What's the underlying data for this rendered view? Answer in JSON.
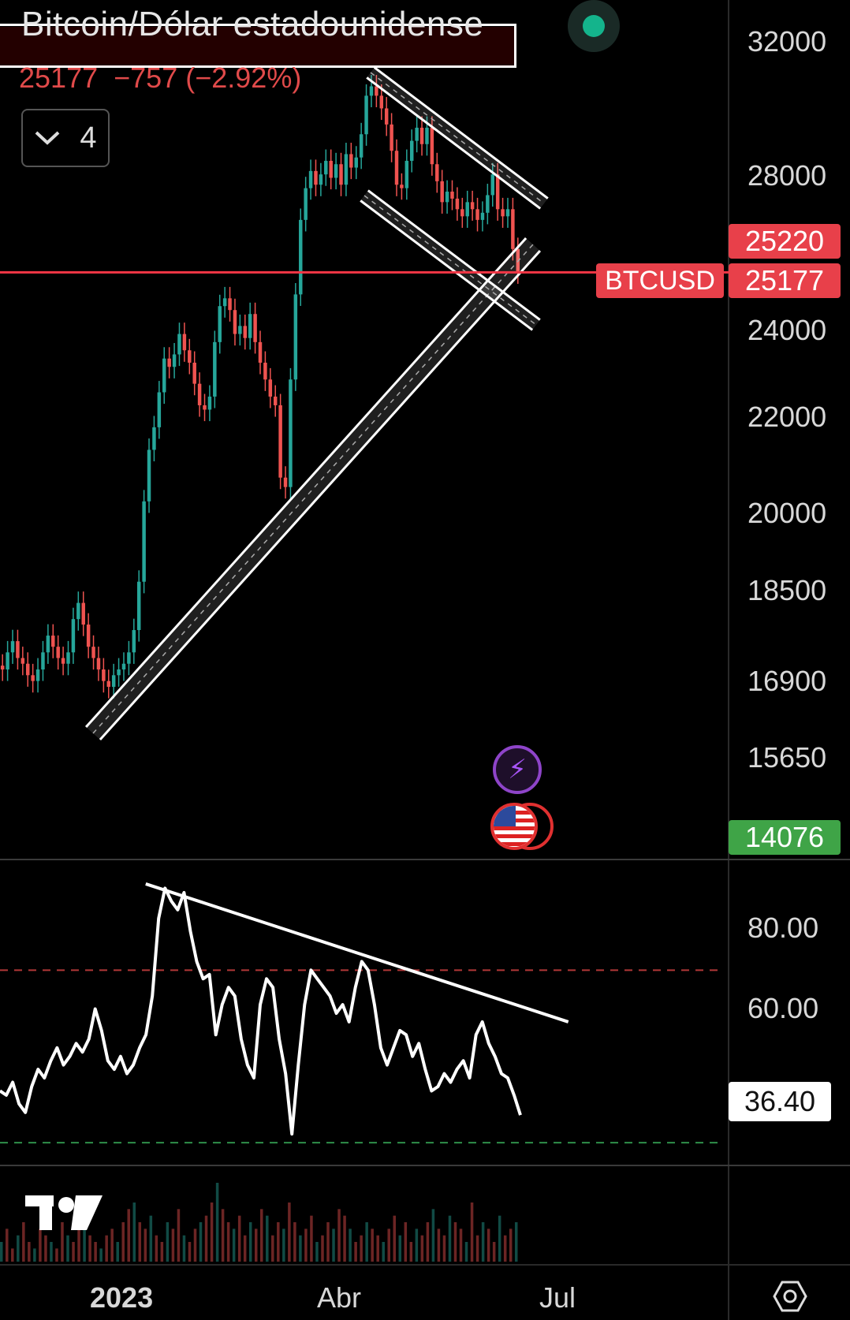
{
  "header": {
    "title": "Bitcoin/Dólar estadounidense",
    "last_price": "25177",
    "change": "−757",
    "change_pct": "(−2.92%)",
    "indicator_count": "4"
  },
  "price_tags": {
    "upper": "25220",
    "symbol": "BTCUSD",
    "current": "25177",
    "low": "14076",
    "rsi_value": "36.40"
  },
  "colors": {
    "up": "#26a69a",
    "down": "#ef5350",
    "price_line": "#f23645",
    "low_tag": "#3fa447",
    "rsi_line": "#ffffff",
    "rsi_upper_band": "#b23838",
    "rsi_lower_band": "#2f8f4a"
  },
  "icons": {
    "collapse": "chevron-down-icon",
    "live": "live-status-dot-icon",
    "alert": "lightning-bolt-icon",
    "event": "us-flag-icon",
    "logo": "tradingview-logo-icon",
    "settings": "hexagon-settings-icon"
  },
  "chart_data": [
    {
      "type": "candlestick",
      "symbol": "BTCUSD",
      "y_ticks": [
        "32000",
        "28000",
        "24000",
        "22000",
        "20000",
        "18500",
        "16900",
        "15650"
      ],
      "y_scale": "log",
      "ylim": [
        13600,
        33500
      ],
      "x_ticks": [
        "2023",
        "Abr",
        "Jul"
      ],
      "close_series": [
        16600,
        16900,
        17100,
        16800,
        16700,
        16500,
        16400,
        16600,
        16900,
        17200,
        17000,
        16800,
        16700,
        16900,
        17500,
        17800,
        17400,
        17000,
        16800,
        16600,
        16400,
        16300,
        16500,
        16600,
        16700,
        16900,
        17300,
        18200,
        19800,
        20900,
        21400,
        22200,
        23000,
        22800,
        23100,
        23600,
        23200,
        22900,
        22400,
        21900,
        21800,
        22100,
        23400,
        24300,
        24500,
        24200,
        23600,
        23800,
        23500,
        24100,
        23400,
        22900,
        22500,
        22100,
        21900,
        20300,
        20100,
        22500,
        24600,
        26600,
        27500,
        28000,
        27600,
        27900,
        28300,
        27800,
        28200,
        27600,
        28500,
        28100,
        28400,
        29100,
        30300,
        30600,
        30300,
        29900,
        29400,
        28600,
        27600,
        27500,
        28300,
        28900,
        29300,
        28800,
        29300,
        28200,
        27700,
        27100,
        27400,
        27200,
        26900,
        26700,
        27100,
        26900,
        26600,
        26800,
        27300,
        27900,
        26900,
        26700,
        26900,
        25800,
        25177
      ],
      "annotations": [
        {
          "shape": "rising support channel",
          "points": [
            [
              "2023-01",
              15900
            ],
            [
              "2023-06",
              26600
            ]
          ]
        },
        {
          "shape": "descending channel",
          "points": [
            [
              "2023-04",
              30900
            ],
            [
              "2023-06",
              25300
            ]
          ]
        },
        {
          "shape": "horizontal level",
          "value": 25177
        }
      ]
    },
    {
      "type": "line",
      "name": "RSI",
      "y_ticks": [
        "80.00",
        "60.00"
      ],
      "ylim": [
        28,
        92
      ],
      "bands": {
        "upper": 70,
        "lower": 30
      },
      "values": [
        42,
        41,
        44,
        39,
        37,
        43,
        47,
        45,
        49,
        52,
        48,
        50,
        53,
        51,
        54,
        61,
        56,
        49,
        47,
        50,
        46,
        48,
        52,
        55,
        64,
        82,
        89,
        86,
        84,
        88,
        79,
        72,
        68,
        69,
        55,
        62,
        66,
        64,
        54,
        48,
        45,
        62,
        68,
        66,
        54,
        46,
        32,
        48,
        62,
        70,
        68,
        66,
        64,
        60,
        62,
        58,
        66,
        72,
        70,
        62,
        52,
        48,
        52,
        56,
        55,
        50,
        53,
        47,
        42,
        43,
        46,
        44,
        47,
        49,
        45,
        55,
        58,
        53,
        50,
        46,
        45,
        41,
        36.4
      ],
      "trendline": [
        [
          0.2,
          90
        ],
        [
          0.78,
          58
        ]
      ]
    },
    {
      "type": "bar",
      "name": "Volume",
      "values": [
        3,
        5,
        2,
        4,
        6,
        3,
        2,
        5,
        4,
        3,
        2,
        6,
        4,
        3,
        5,
        7,
        4,
        3,
        2,
        4,
        5,
        3,
        6,
        8,
        9,
        6,
        5,
        7,
        4,
        3,
        6,
        5,
        8,
        4,
        3,
        5,
        6,
        7,
        9,
        12,
        8,
        6,
        5,
        7,
        4,
        6,
        5,
        8,
        7,
        4,
        6,
        5,
        9,
        6,
        4,
        5,
        7,
        3,
        4,
        6,
        5,
        8,
        7,
        5,
        3,
        4,
        6,
        5,
        4,
        3,
        5,
        7,
        4,
        6,
        3,
        5,
        4,
        6,
        8,
        5,
        4,
        7,
        6,
        5,
        3,
        9,
        4,
        6,
        5,
        3,
        7,
        4,
        5,
        6
      ]
    }
  ]
}
